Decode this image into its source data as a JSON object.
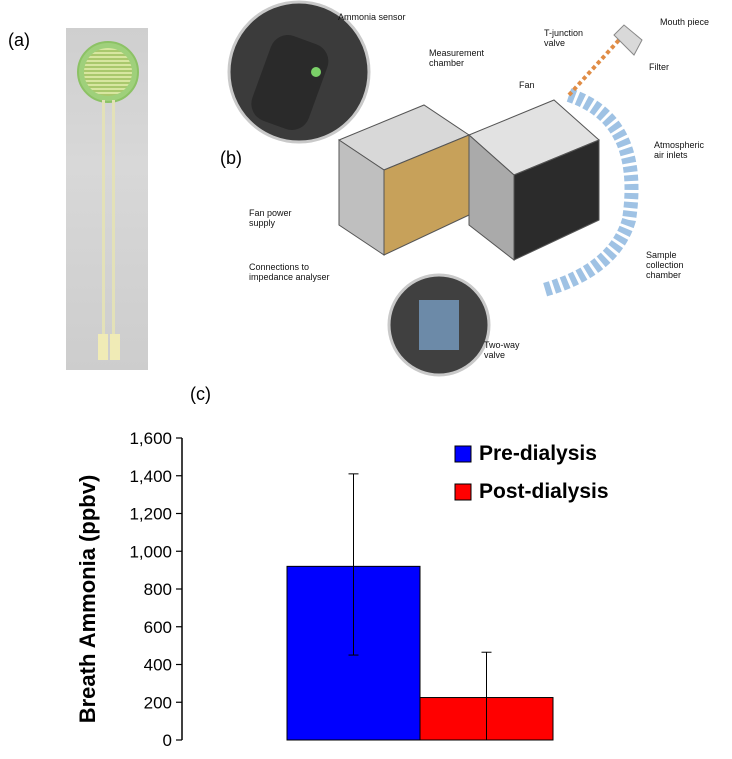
{
  "panels": {
    "a": "(a)",
    "b": "(b)",
    "c": "(c)"
  },
  "device_labels": {
    "ammonia_sensor": "Ammonia sensor",
    "measurement_chamber": "Measurement\nchamber",
    "fan": "Fan",
    "t_junction": "T-junction\nvalve",
    "mouth_piece": "Mouth piece",
    "filter": "Filter",
    "atmospheric": "Atmospheric\nair inlets",
    "fan_power": "Fan power\nsupply",
    "connections": "Connections to\nimpedance analyser",
    "sample_collection": "Sample\ncollection\nchamber",
    "two_way": "Two-way\nvalve"
  },
  "colors": {
    "pre": "#0000ff",
    "post": "#ff0000"
  },
  "chart_data": {
    "type": "bar",
    "categories": [
      "Pre-dialysis",
      "Post-dialysis"
    ],
    "series": [
      {
        "name": "Pre-dialysis",
        "value": 920,
        "error_low": 450,
        "error_high": 1410,
        "color": "#0000ff"
      },
      {
        "name": "Post-dialysis",
        "value": 225,
        "error_low": 0,
        "error_high": 465,
        "color": "#ff0000"
      }
    ],
    "ylabel": "Breath Ammonia (ppbv)",
    "ylim": [
      0,
      1600
    ],
    "yticks": [
      "0",
      "200",
      "400",
      "600",
      "800",
      "1,000",
      "1,200",
      "1,400",
      "1,600"
    ],
    "legend_position": "top-right",
    "grid": false
  }
}
